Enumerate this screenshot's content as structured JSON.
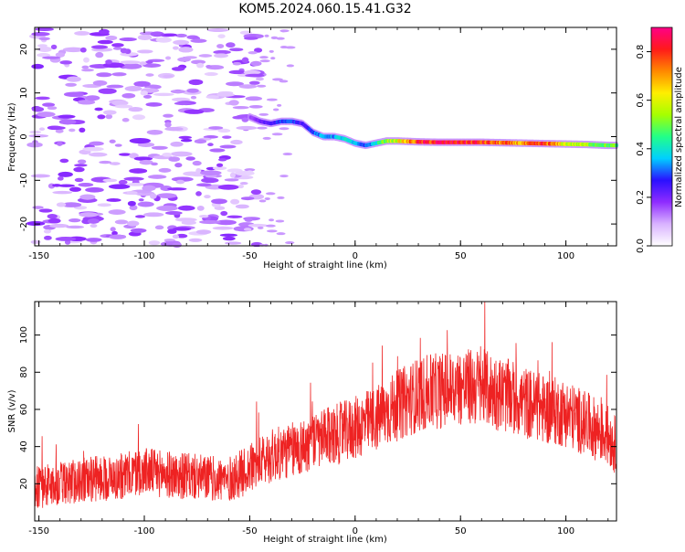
{
  "title": "KOM5.2024.060.15.41.G32",
  "colors": {
    "axis": "#000000",
    "snr_line": "#ee2222",
    "colorbar_stops": [
      "#ffffff",
      "#d9b3ff",
      "#8f2cff",
      "#2a10ff",
      "#00cfff",
      "#22ff88",
      "#a6ff00",
      "#ffee00",
      "#ff8800",
      "#ff1a1a",
      "#ff0088"
    ]
  },
  "chart_data": [
    {
      "type": "heatmap",
      "name": "spectrogram",
      "xlabel": "Height of straight line (km)",
      "ylabel": "Frequency (Hz)",
      "xlim": [
        -152,
        124
      ],
      "ylim": [
        -25,
        25
      ],
      "xticks": [
        -150,
        -100,
        -50,
        0,
        50,
        100
      ],
      "yticks": [
        -20,
        -10,
        0,
        10,
        20
      ],
      "colorbar": {
        "label": "Normalized spectral amplitude",
        "range": [
          0,
          0.9
        ],
        "ticks": [
          "0.0",
          "0.2",
          "0.4",
          "0.6",
          "0.8"
        ],
        "tick_values": [
          0.0,
          0.2,
          0.4,
          0.6,
          0.8
        ]
      },
      "ridge": {
        "description_points_x": [
          -50,
          -45,
          -40,
          -35,
          -30,
          -25,
          -20,
          -15,
          -10,
          -5,
          0,
          5,
          10,
          15,
          20,
          30,
          40,
          50,
          60,
          70,
          80,
          90,
          100,
          110,
          120
        ],
        "frequency_hz": [
          4.5,
          3.5,
          3.0,
          3.5,
          3.5,
          3.0,
          1.0,
          0.0,
          0.0,
          -0.5,
          -1.5,
          -2.0,
          -1.5,
          -1.0,
          -1.0,
          -1.2,
          -1.3,
          -1.3,
          -1.3,
          -1.4,
          -1.5,
          -1.6,
          -1.7,
          -1.8,
          -2.0
        ],
        "amplitude": [
          0.15,
          0.2,
          0.25,
          0.3,
          0.3,
          0.25,
          0.3,
          0.35,
          0.35,
          0.4,
          0.35,
          0.3,
          0.4,
          0.55,
          0.6,
          0.8,
          0.85,
          0.85,
          0.8,
          0.75,
          0.7,
          0.8,
          0.6,
          0.55,
          0.5
        ]
      },
      "noise_region_x": [
        -152,
        -45
      ]
    },
    {
      "type": "line",
      "name": "snr",
      "xlabel": "Height of straight line (km)",
      "ylabel": "SNR (v/v)",
      "xlim": [
        -152,
        124
      ],
      "ylim": [
        0,
        118
      ],
      "xticks": [
        -150,
        -100,
        -50,
        0,
        50,
        100
      ],
      "yticks": [
        20,
        40,
        60,
        80,
        100
      ],
      "trend_x": [
        -152,
        -140,
        -130,
        -120,
        -110,
        -100,
        -90,
        -80,
        -70,
        -60,
        -50,
        -40,
        -30,
        -20,
        -10,
        0,
        10,
        20,
        30,
        40,
        50,
        60,
        70,
        80,
        90,
        100,
        110,
        120,
        124
      ],
      "trend_y": [
        18,
        20,
        22,
        23,
        24,
        27,
        25,
        24,
        23,
        22,
        28,
        35,
        38,
        42,
        46,
        50,
        55,
        62,
        68,
        70,
        72,
        72,
        68,
        64,
        60,
        58,
        52,
        46,
        40
      ],
      "noise_amplitude": 14
    }
  ]
}
